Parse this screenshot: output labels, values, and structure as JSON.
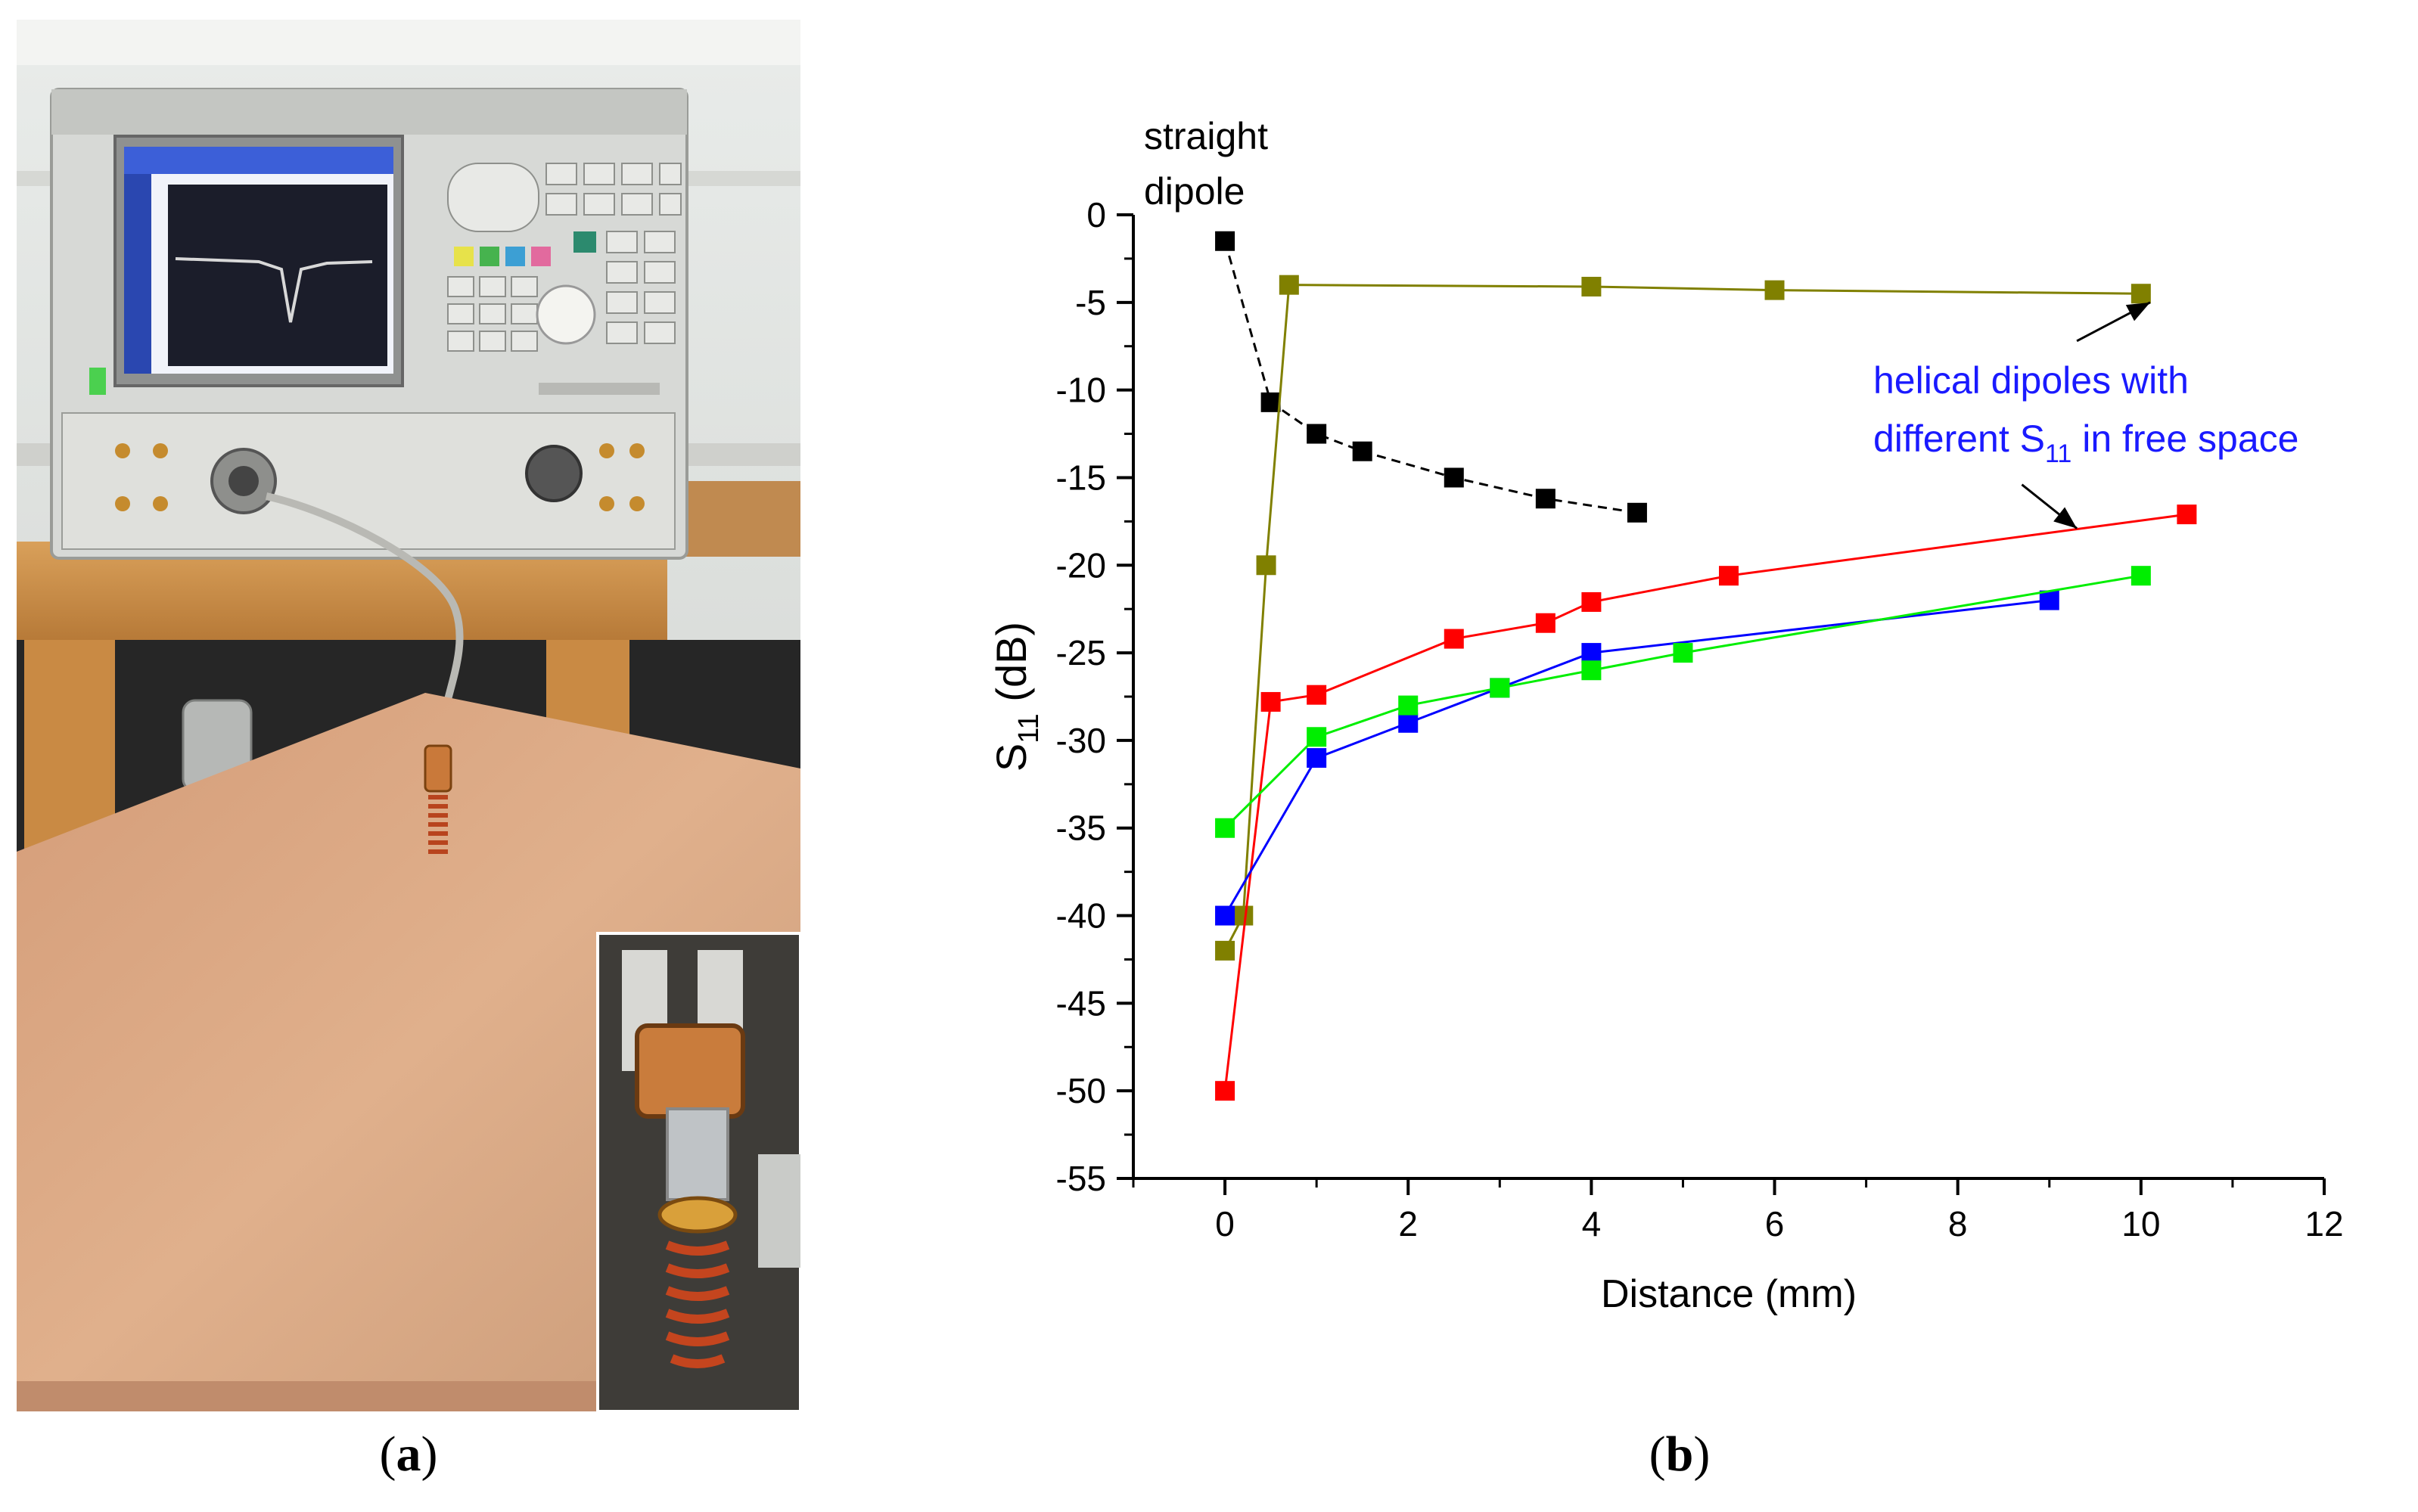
{
  "panels": {
    "a": {
      "open": "(",
      "letter": "a",
      "close": ")"
    },
    "b": {
      "open": "(",
      "letter": "b",
      "close": ")"
    }
  },
  "photo": {
    "description_icon": "photo-of-network-analyzer-and-helical-dipole-on-copper-plate"
  },
  "chart_data": {
    "type": "scatter",
    "xlabel": "Distance (mm)",
    "ylabel": "S11 (dB)",
    "xlim": [
      -1,
      12
    ],
    "ylim": [
      -55,
      0
    ],
    "xticks": [
      0,
      2,
      4,
      6,
      8,
      10,
      12
    ],
    "yticks": [
      0,
      -5,
      -10,
      -15,
      -20,
      -25,
      -30,
      -35,
      -40,
      -45,
      -50,
      -55
    ],
    "grid": false,
    "series": [
      {
        "color": "#000000",
        "dashed": true,
        "x": [
          0,
          0.5,
          1,
          1.5,
          2.5,
          3.5,
          4.5
        ],
        "y": [
          -1.5,
          -10.7,
          -12.5,
          -13.5,
          -15,
          -16.2,
          -17
        ]
      },
      {
        "color": "#808000",
        "dashed": false,
        "x": [
          0,
          0.2,
          0.45,
          0.7,
          4,
          6,
          10
        ],
        "y": [
          -42,
          -40,
          -20,
          -4,
          -4.1,
          -4.3,
          -4.5
        ]
      },
      {
        "color": "#ff0000",
        "dashed": false,
        "x": [
          0,
          0.5,
          1,
          2.5,
          3.5,
          4,
          5.5,
          10.5
        ],
        "y": [
          -50,
          -27.8,
          -27.4,
          -24.2,
          -23.3,
          -22.1,
          -20.6,
          -17.1
        ]
      },
      {
        "color": "#0000ff",
        "dashed": false,
        "x": [
          0,
          1,
          2,
          3,
          4,
          9
        ],
        "y": [
          -40,
          -31,
          -29,
          -27,
          -25,
          -22
        ]
      },
      {
        "color": "#00ee00",
        "dashed": false,
        "x": [
          0,
          1,
          2,
          3,
          4,
          5,
          10
        ],
        "y": [
          -35,
          -29.8,
          -28,
          -27,
          -26,
          -25,
          -20.6
        ]
      }
    ],
    "annotations": [
      {
        "text_lines": [
          "straight",
          "dipole"
        ],
        "color": "#000000"
      },
      {
        "text_line1": "helical dipoles with",
        "text_line2_pre": "different S",
        "text_line2_sub": "11",
        "text_line2_post": " in free space",
        "color": "#1a1aff",
        "arrows": [
          {
            "from": [
              9.3,
              -7.2
            ],
            "to": [
              10.1,
              -5.0
            ]
          },
          {
            "from": [
              8.7,
              -15.4
            ],
            "to": [
              9.3,
              -17.9
            ]
          }
        ]
      }
    ]
  }
}
